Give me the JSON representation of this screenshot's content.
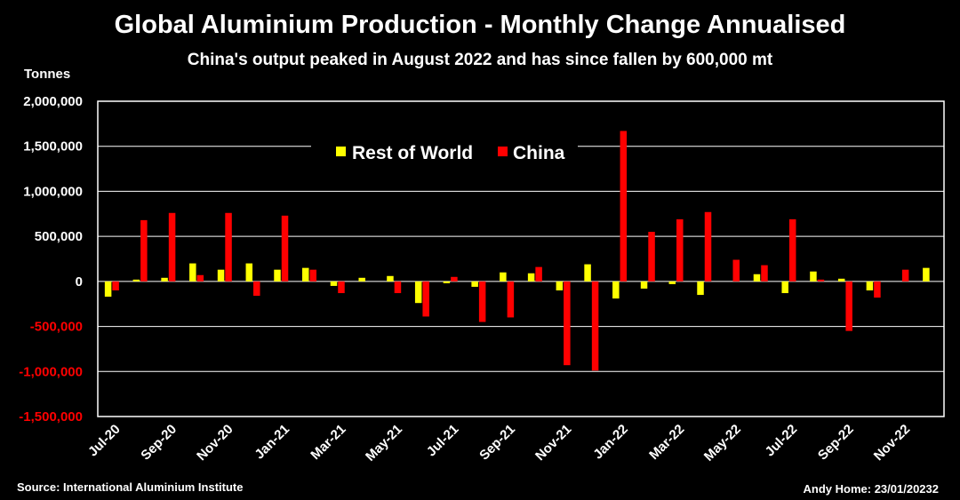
{
  "chart_data": {
    "type": "bar",
    "title": "Global Aluminium Production - Monthly Change Annualised",
    "subtitle": "China's output peaked in August 2022 and has since fallen by 600,000 mt",
    "ylabel": "Tonnes",
    "ylim": [
      -1500000,
      2000000
    ],
    "yticks": [
      2000000,
      1500000,
      1000000,
      500000,
      0,
      -500000,
      -1000000,
      -1500000
    ],
    "ytick_labels": [
      "2,000,000",
      "1,500,000",
      "1,000,000",
      "500,000",
      "0",
      "-500,000",
      "-1,000,000",
      "-1,500,000"
    ],
    "categories": [
      "Jul-20",
      "Aug-20",
      "Sep-20",
      "Oct-20",
      "Nov-20",
      "Dec-20",
      "Jan-21",
      "Feb-21",
      "Mar-21",
      "Apr-21",
      "May-21",
      "Jun-21",
      "Jul-21",
      "Aug-21",
      "Sep-21",
      "Oct-21",
      "Nov-21",
      "Dec-21",
      "Jan-22",
      "Feb-22",
      "Mar-22",
      "Apr-22",
      "May-22",
      "Jun-22",
      "Jul-22",
      "Aug-22",
      "Sep-22",
      "Oct-22",
      "Nov-22",
      "Dec-22"
    ],
    "xtick_labels": [
      "Jul-20",
      "Sep-20",
      "Nov-20",
      "Jan-21",
      "Mar-21",
      "May-21",
      "Jul-21",
      "Sep-21",
      "Nov-21",
      "Jan-22",
      "Mar-22",
      "May-22",
      "Jul-22",
      "Sep-22",
      "Nov-22"
    ],
    "series": [
      {
        "name": "Rest of World",
        "color": "#FFFF00",
        "values": [
          -170000,
          20000,
          40000,
          200000,
          130000,
          200000,
          130000,
          150000,
          -50000,
          40000,
          60000,
          -240000,
          -20000,
          -60000,
          100000,
          90000,
          -100000,
          190000,
          -190000,
          -80000,
          -30000,
          -150000,
          0,
          80000,
          -130000,
          110000,
          30000,
          -100000,
          0,
          150000
        ]
      },
      {
        "name": "China",
        "color": "#FF0000",
        "values": [
          -100000,
          680000,
          760000,
          70000,
          760000,
          -160000,
          730000,
          130000,
          -130000,
          0,
          -130000,
          -390000,
          50000,
          -450000,
          -400000,
          160000,
          -930000,
          -990000,
          1670000,
          550000,
          690000,
          770000,
          240000,
          180000,
          690000,
          20000,
          -550000,
          -180000,
          130000,
          0
        ]
      }
    ],
    "legend": {
      "position": "top-center",
      "entries": [
        "Rest of World",
        "China"
      ]
    },
    "grid": true
  },
  "footer": {
    "source": "Source: International Aluminium Institute",
    "credit": "Andy Home: 23/01/20232"
  },
  "colors": {
    "background": "#000000",
    "plot_border": "#FFFFFF",
    "negative_tick": "#FF0000",
    "positive_tick": "#FFFFFF"
  }
}
